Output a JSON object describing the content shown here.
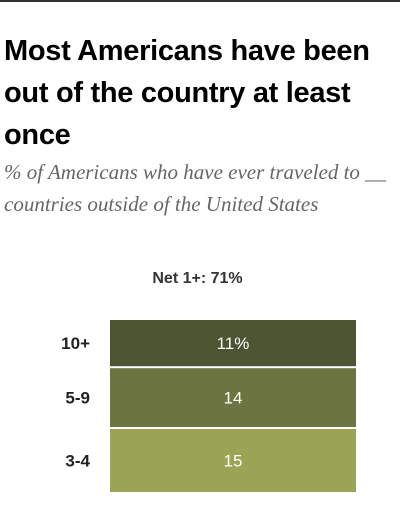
{
  "title": "Most Americans have been out of the country at least once",
  "subtitle": "% of Americans who have ever traveled to __ countries outside of the United States",
  "net_label": "Net 1+: 71%",
  "chart_data": {
    "type": "bar",
    "orientation": "stacked-column",
    "categories": [
      "10+",
      "5-9",
      "3-4"
    ],
    "values": [
      11,
      14,
      15
    ],
    "value_labels": [
      "11%",
      "14",
      "15"
    ],
    "colors": [
      "#4c5431",
      "#6c7542",
      "#9ba354"
    ],
    "label_color": "#ffffff",
    "title": "Most Americans have been out of the country at least once",
    "xlabel": "",
    "ylabel": ""
  }
}
